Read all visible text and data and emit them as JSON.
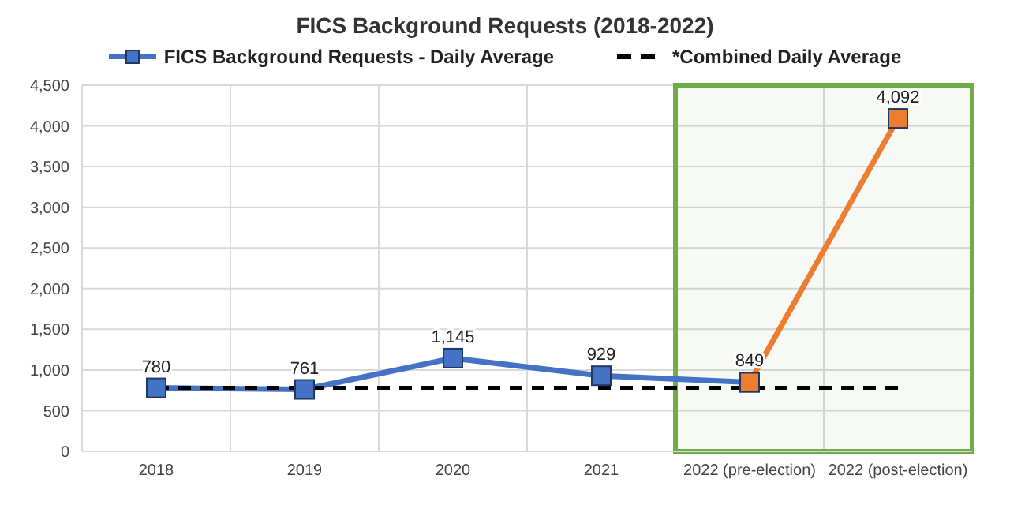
{
  "chart_data": {
    "type": "line",
    "title": "FICS Background Requests (2018-2022)",
    "categories": [
      "2018",
      "2019",
      "2020",
      "2021",
      "2022 (pre-election)",
      "2022 (post-election)"
    ],
    "series": [
      {
        "name": "FICS Background Requests - Daily Average",
        "color": "#4472c4",
        "values": [
          780,
          761,
          1145,
          929,
          849,
          null
        ],
        "marker": "square",
        "value_labels": [
          "780",
          "761",
          "1,145",
          "929",
          "849",
          null
        ]
      },
      {
        "color": "#ed7d31",
        "values": [
          null,
          null,
          null,
          null,
          849,
          4092
        ],
        "marker": "square",
        "value_labels": [
          null,
          null,
          null,
          null,
          null,
          "4,092"
        ]
      },
      {
        "name": "*Combined Daily Average",
        "color": "#000000",
        "values": [
          780,
          780,
          780,
          780,
          780,
          780
        ],
        "marker": "none",
        "line_style": "dashed"
      }
    ],
    "ylim": [
      0,
      4500
    ],
    "yticks": [
      0,
      500,
      {
        "value": 1000,
        "label": "1,000"
      },
      {
        "value": 1500,
        "label": "1,500"
      },
      {
        "value": 2000,
        "label": "2,000"
      },
      {
        "value": 2500,
        "label": "2,500"
      },
      {
        "value": 3000,
        "label": "3,000"
      },
      {
        "value": 3500,
        "label": "3,500"
      },
      {
        "value": 4000,
        "label": "4,000"
      },
      {
        "value": 4500,
        "label": "4,500"
      }
    ],
    "grid": true,
    "legend": "top",
    "bands": [
      {
        "axis": "x",
        "from": "2022 (pre-election)",
        "to": "2022 (post-election)",
        "color": "#70ad47"
      }
    ]
  }
}
